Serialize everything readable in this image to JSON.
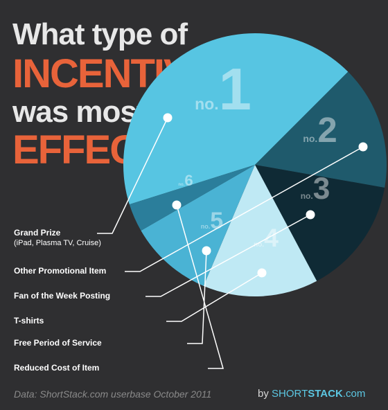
{
  "title": {
    "line1": "What type of",
    "line2": "INCENTIVE",
    "line3": "was most",
    "line4": "EFFECTIVE?"
  },
  "chart_data": {
    "type": "pie",
    "ranking_prefix": "no",
    "slices": [
      {
        "rank": "1",
        "label": "Grand Prize",
        "sublabel": "(iPad, Plasma TV, Cruise)",
        "color": "#57c5e2"
      },
      {
        "rank": "2",
        "label": "Other Promotional Item",
        "color": "#1f5a6c"
      },
      {
        "rank": "3",
        "label": "Fan of the Week Posting",
        "color": "#0f2a35"
      },
      {
        "rank": "4",
        "label": "T-shirts",
        "color": "#bfe9f4"
      },
      {
        "rank": "5",
        "label": "Free Period of Service",
        "color": "#4ab3d4"
      },
      {
        "rank": "6",
        "label": "Reduced Cost of Item",
        "color": "#2b7e9b"
      }
    ]
  },
  "footer": {
    "source": "Data: ShortStack.com userbase October 2011",
    "brand_by": "by ",
    "brand_short": "SHORT",
    "brand_stack": "STACK",
    "brand_domain": ".com"
  }
}
